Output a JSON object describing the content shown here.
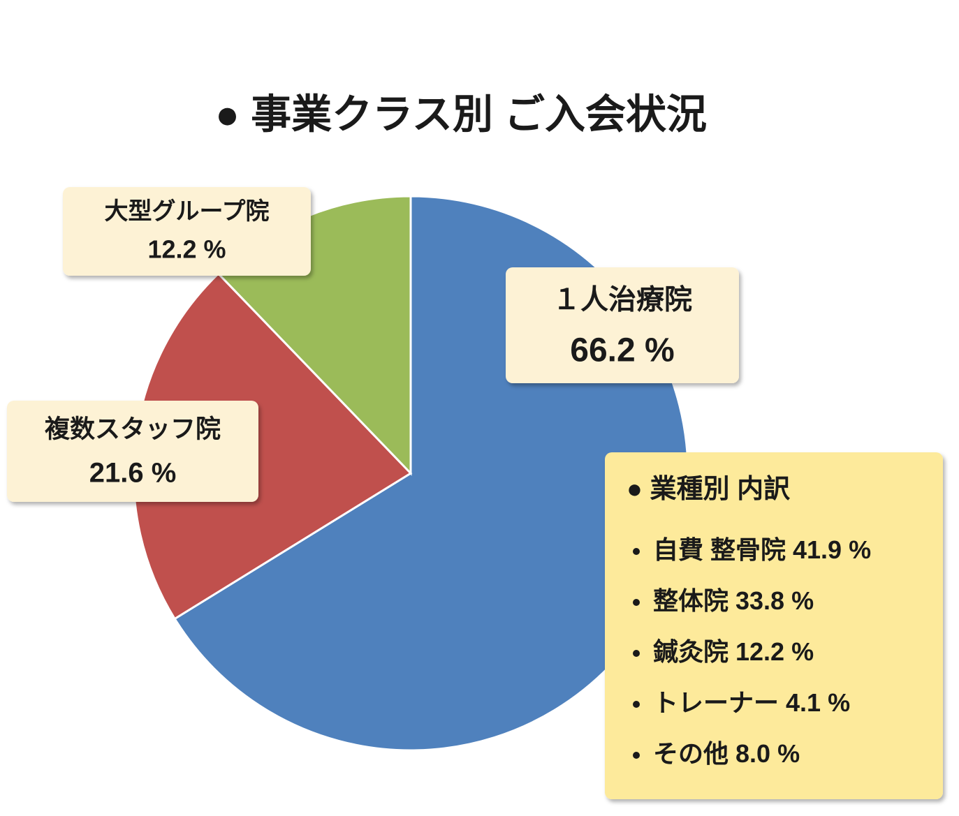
{
  "chart_data": {
    "type": "pie",
    "title": "● 事業クラス別 ご入会状況",
    "categories": [
      "１人治療院",
      "複数スタッフ院",
      "大型グループ院"
    ],
    "values": [
      66.2,
      21.6,
      12.2
    ],
    "value_labels": [
      "66.2 %",
      "21.6 %",
      "12.2 %"
    ],
    "colors": [
      "#4f81bd",
      "#c0504d",
      "#9bbb59"
    ]
  },
  "breakdown": {
    "title": "● 業種別 内訳",
    "items": [
      {
        "label": "自費 整骨院",
        "value": "41.9 %"
      },
      {
        "label": "整体院",
        "value": "33.8 %"
      },
      {
        "label": "鍼灸院",
        "value": "12.2 %"
      },
      {
        "label": "トレーナー",
        "value": "4.1 %"
      },
      {
        "label": "その他",
        "value": "8.0 %"
      }
    ]
  }
}
